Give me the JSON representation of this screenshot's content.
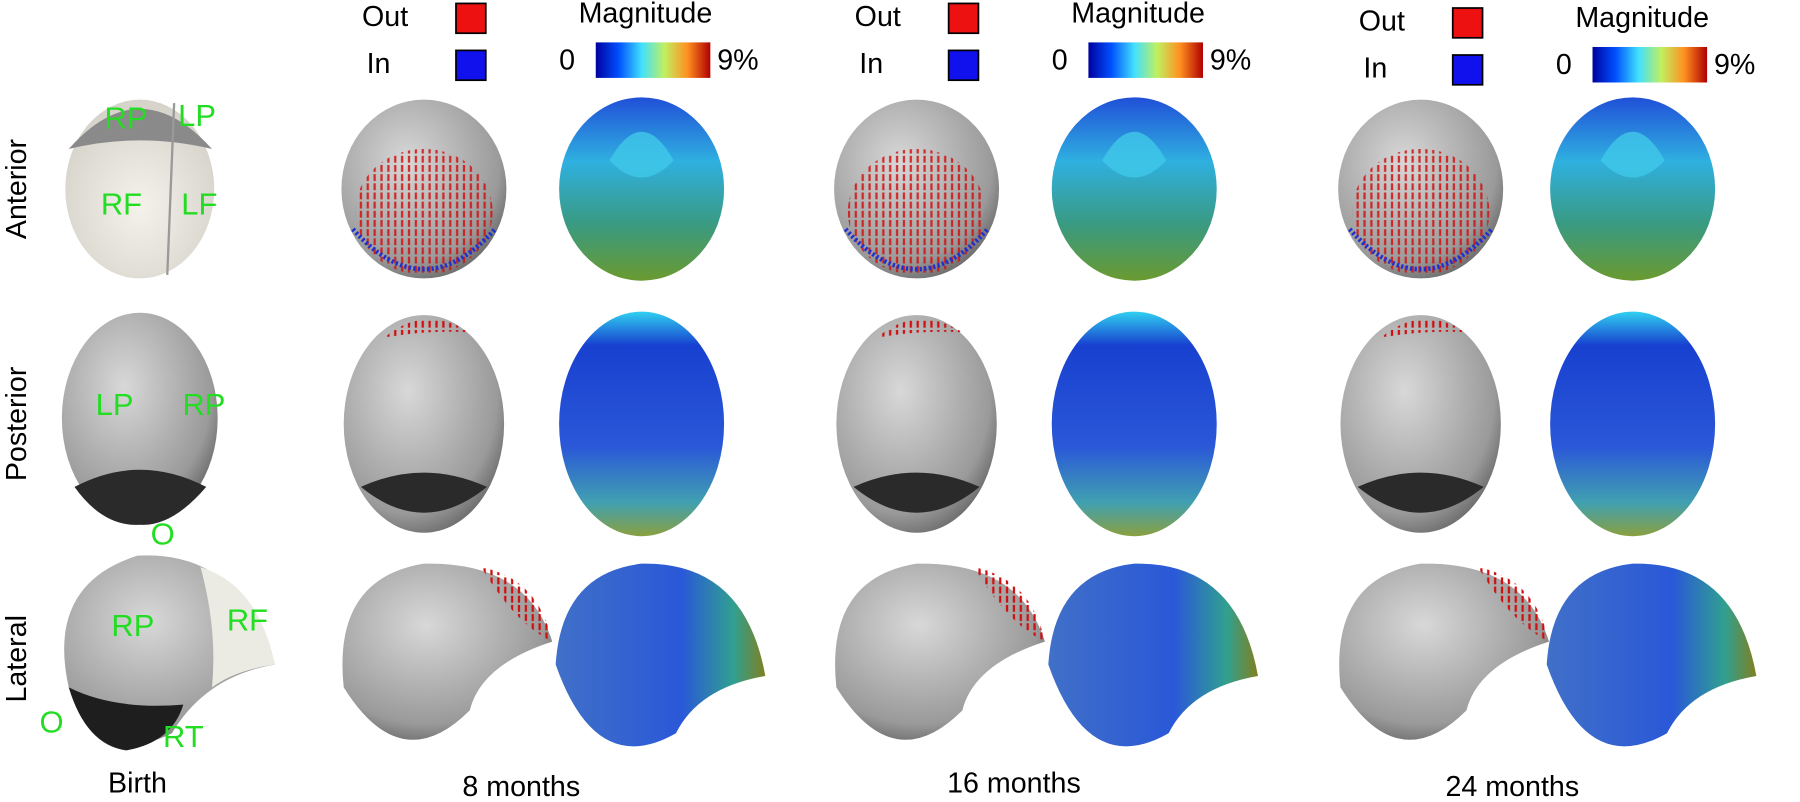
{
  "row_labels": [
    "Anterior",
    "Posterior",
    "Lateral"
  ],
  "column_labels": [
    "Birth",
    "8 months",
    "16 months",
    "24 months"
  ],
  "legends": [
    {
      "out": "Out",
      "in": "In",
      "magnitude": "Magnitude",
      "min": "0",
      "max": "9%"
    },
    {
      "out": "Out",
      "in": "In",
      "magnitude": "Magnitude",
      "min": "0",
      "max": "9%"
    },
    {
      "out": "Out",
      "in": "In",
      "magnitude": "Magnitude",
      "min": "0",
      "max": "9%"
    }
  ],
  "region_labels": {
    "anterior": [
      "RP",
      "LP",
      "RF",
      "LF"
    ],
    "posterior": [
      "LP",
      "RP",
      "O"
    ],
    "lateral": [
      "RP",
      "RF",
      "O",
      "RT"
    ]
  }
}
